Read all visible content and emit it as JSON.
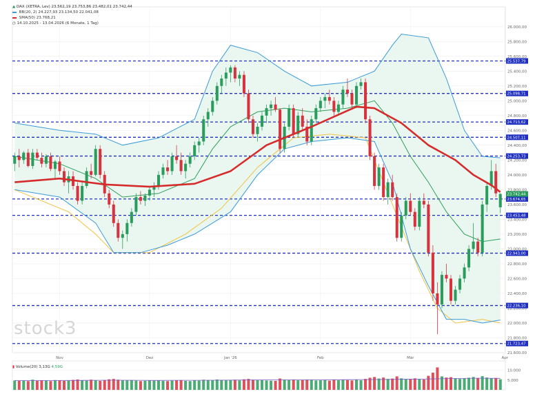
{
  "legend": {
    "instrument": "DAX (XETRA, Lev)",
    "ohlc": "23.562,19 23.753,86 23.482,01 23.742,44",
    "bb": "BB(20, 2)",
    "bb_values": "24.227,93 23.134,50 22.041,08",
    "sma": "SMA(50)",
    "sma_value": "23.768,21",
    "range": "14.10.2025 - 13.04.2026 (6 Monate, 1 Tag)"
  },
  "volume_legend": {
    "label": "Volume(20)",
    "value1": "3,13G",
    "value2": "4,59G"
  },
  "watermark": "stock3",
  "colors": {
    "up": "#2a9d5c",
    "down": "#d6333f",
    "bb_upper_lower": "#3a9ad9",
    "bb_mid": "#2e9e5a",
    "bb_fill": "#e8f6ee",
    "sma": "#d62b2b",
    "envelope": "#f0c240",
    "levels": "#1f2fbf"
  },
  "chart_data": {
    "type": "candlestick",
    "title": "DAX (XETRA, Lev)",
    "ylim": [
      21600,
      26100
    ],
    "y_ticks": [
      {
        "v": 26000,
        "label": "26.000,00"
      },
      {
        "v": 25800,
        "label": "25.800,00"
      },
      {
        "v": 25600,
        "label": "25.600,00"
      },
      {
        "v": 25400,
        "label": "25.400,00"
      },
      {
        "v": 25200,
        "label": "25.200,00"
      },
      {
        "v": 25000,
        "label": "25.000,00"
      },
      {
        "v": 24800,
        "label": "24.800,00"
      },
      {
        "v": 24600,
        "label": "24.600,00"
      },
      {
        "v": 24400,
        "label": "24.400,00"
      },
      {
        "v": 24200,
        "label": "24.200,00"
      },
      {
        "v": 24000,
        "label": "24.000,00"
      },
      {
        "v": 23800,
        "label": "23.800,00"
      },
      {
        "v": 23600,
        "label": "23.600,00"
      },
      {
        "v": 23400,
        "label": "23.400,00"
      },
      {
        "v": 23200,
        "label": "23.200,00"
      },
      {
        "v": 23000,
        "label": "23.000,00"
      },
      {
        "v": 22800,
        "label": "22.800,00"
      },
      {
        "v": 22600,
        "label": "22.600,00"
      },
      {
        "v": 22400,
        "label": "22.400,00"
      },
      {
        "v": 22200,
        "label": "22.200,00"
      },
      {
        "v": 22000,
        "label": "22.000,00"
      },
      {
        "v": 21800,
        "label": "21.800,00"
      },
      {
        "v": 21600,
        "label": "21.600,00"
      }
    ],
    "x_ticks": [
      {
        "i": 10,
        "label": "Nov"
      },
      {
        "i": 30,
        "label": "Dez"
      },
      {
        "i": 48,
        "label": "Jan '26"
      },
      {
        "i": 68,
        "label": "Feb"
      },
      {
        "i": 88,
        "label": "Mär"
      },
      {
        "i": 109,
        "label": "Apr"
      }
    ],
    "levels": [
      {
        "v": 25537.79,
        "label": "25.537,79"
      },
      {
        "v": 25098.71,
        "label": "25.098,71"
      },
      {
        "v": 24713.62,
        "label": "24.713,62"
      },
      {
        "v": 24507.11,
        "label": "24.507,11"
      },
      {
        "v": 24253.73,
        "label": "24.253,73"
      },
      {
        "v": 23674.65,
        "label": "23.674,65"
      },
      {
        "v": 23453.48,
        "label": "23.453,48"
      },
      {
        "v": 22943.0,
        "label": "22.943,00"
      },
      {
        "v": 22236.1,
        "label": "22.236,10"
      },
      {
        "v": 21723.47,
        "label": "21.723,47"
      }
    ],
    "last_price": {
      "v": 23742.44,
      "label": "23.742,44"
    },
    "candles": [
      [
        24150,
        24300,
        24050,
        24250
      ],
      [
        24250,
        24350,
        24100,
        24200
      ],
      [
        24200,
        24320,
        24150,
        24300
      ],
      [
        24300,
        24350,
        24100,
        24120
      ],
      [
        24120,
        24350,
        24080,
        24300
      ],
      [
        24300,
        24350,
        24200,
        24230
      ],
      [
        24230,
        24300,
        24100,
        24150
      ],
      [
        24150,
        24280,
        24100,
        24250
      ],
      [
        24250,
        24300,
        24050,
        24080
      ],
      [
        24080,
        24200,
        23950,
        24180
      ],
      [
        24180,
        24250,
        24000,
        24050
      ],
      [
        24050,
        24100,
        23850,
        23900
      ],
      [
        23900,
        24050,
        23750,
        23980
      ],
      [
        23980,
        24050,
        23800,
        23850
      ],
      [
        23850,
        23900,
        23600,
        23650
      ],
      [
        23650,
        23900,
        23600,
        23850
      ],
      [
        23850,
        24100,
        23820,
        24050
      ],
      [
        24050,
        24150,
        23950,
        24000
      ],
      [
        24000,
        24400,
        23980,
        24350
      ],
      [
        24350,
        24400,
        23950,
        24000
      ],
      [
        24000,
        24050,
        23700,
        23750
      ],
      [
        23750,
        23800,
        23550,
        23600
      ],
      [
        23600,
        23650,
        23300,
        23350
      ],
      [
        23350,
        23400,
        23100,
        23150
      ],
      [
        23150,
        23250,
        23000,
        23200
      ],
      [
        23200,
        23400,
        23100,
        23350
      ],
      [
        23350,
        23550,
        23300,
        23500
      ],
      [
        23500,
        23750,
        23450,
        23700
      ],
      [
        23700,
        23780,
        23600,
        23650
      ],
      [
        23650,
        23750,
        23580,
        23720
      ],
      [
        23720,
        23850,
        23650,
        23800
      ],
      [
        23800,
        23900,
        23700,
        23850
      ],
      [
        23850,
        24050,
        23800,
        24000
      ],
      [
        24000,
        24150,
        23950,
        24100
      ],
      [
        24100,
        24200,
        24000,
        24050
      ],
      [
        24050,
        24300,
        24000,
        24250
      ],
      [
        24250,
        24400,
        24150,
        24200
      ],
      [
        24200,
        24300,
        24000,
        24050
      ],
      [
        24050,
        24200,
        23950,
        24150
      ],
      [
        24150,
        24300,
        24100,
        24250
      ],
      [
        24250,
        24450,
        24200,
        24400
      ],
      [
        24400,
        24500,
        24300,
        24450
      ],
      [
        24450,
        24800,
        24400,
        24750
      ],
      [
        24750,
        24900,
        24650,
        24850
      ],
      [
        24850,
        25050,
        24800,
        25000
      ],
      [
        25000,
        25250,
        24950,
        25200
      ],
      [
        25200,
        25350,
        25100,
        25300
      ],
      [
        25300,
        25450,
        25200,
        25380
      ],
      [
        25380,
        25480,
        25250,
        25450
      ],
      [
        25450,
        25480,
        25250,
        25300
      ],
      [
        25300,
        25400,
        25200,
        25350
      ],
      [
        25350,
        25400,
        25050,
        25100
      ],
      [
        25100,
        25150,
        24700,
        24750
      ],
      [
        24750,
        24800,
        24500,
        24550
      ],
      [
        24550,
        24700,
        24450,
        24650
      ],
      [
        24650,
        24850,
        24600,
        24800
      ],
      [
        24800,
        24950,
        24700,
        24900
      ],
      [
        24900,
        25000,
        24800,
        24950
      ],
      [
        24950,
        25050,
        24850,
        24880
      ],
      [
        24880,
        24900,
        24300,
        24350
      ],
      [
        24350,
        24700,
        24300,
        24650
      ],
      [
        24650,
        24950,
        24600,
        24900
      ],
      [
        24900,
        24950,
        24500,
        24550
      ],
      [
        24550,
        24850,
        24500,
        24800
      ],
      [
        24800,
        24900,
        24600,
        24650
      ],
      [
        24650,
        24750,
        24400,
        24450
      ],
      [
        24450,
        24800,
        24400,
        24750
      ],
      [
        24750,
        24950,
        24700,
        24900
      ],
      [
        24900,
        25050,
        24850,
        25000
      ],
      [
        25000,
        25100,
        24900,
        25050
      ],
      [
        25050,
        25150,
        24950,
        25000
      ],
      [
        25000,
        25050,
        24800,
        24850
      ],
      [
        24850,
        25000,
        24800,
        24950
      ],
      [
        24950,
        25200,
        24900,
        25150
      ],
      [
        25150,
        25300,
        25050,
        25100
      ],
      [
        25100,
        25150,
        24900,
        24950
      ],
      [
        24950,
        25250,
        24900,
        25200
      ],
      [
        25200,
        25300,
        25150,
        25250
      ],
      [
        25250,
        25300,
        24700,
        24750
      ],
      [
        24750,
        24800,
        24200,
        24250
      ],
      [
        24250,
        24300,
        23800,
        23850
      ],
      [
        23850,
        24150,
        23800,
        24100
      ],
      [
        24100,
        24150,
        23650,
        23700
      ],
      [
        23700,
        23950,
        23600,
        23900
      ],
      [
        23900,
        24000,
        23650,
        23700
      ],
      [
        23700,
        23750,
        23100,
        23150
      ],
      [
        23150,
        23500,
        23100,
        23450
      ],
      [
        23450,
        23700,
        23400,
        23650
      ],
      [
        23650,
        23750,
        23450,
        23500
      ],
      [
        23500,
        23550,
        23250,
        23300
      ],
      [
        23300,
        23700,
        23250,
        23650
      ],
      [
        23650,
        23750,
        23550,
        23600
      ],
      [
        23600,
        23650,
        22900,
        22950
      ],
      [
        22950,
        23050,
        22300,
        22400
      ],
      [
        22400,
        22550,
        21850,
        22250
      ],
      [
        22250,
        22700,
        22200,
        22650
      ],
      [
        22650,
        22800,
        22550,
        22600
      ],
      [
        22600,
        22650,
        22250,
        22300
      ],
      [
        22300,
        22500,
        22250,
        22450
      ],
      [
        22450,
        22650,
        22400,
        22600
      ],
      [
        22600,
        22800,
        22550,
        22750
      ],
      [
        22750,
        23050,
        22700,
        23000
      ],
      [
        23000,
        23350,
        22950,
        23100
      ],
      [
        23100,
        23150,
        22900,
        22950
      ],
      [
        22950,
        23650,
        22900,
        23600
      ],
      [
        23600,
        23900,
        23500,
        23850
      ],
      [
        23850,
        24200,
        23800,
        24050
      ],
      [
        24050,
        24150,
        23700,
        23750
      ],
      [
        23562.19,
        23753.86,
        23482.01,
        23742.44
      ]
    ],
    "sma50": [
      [
        0,
        23900
      ],
      [
        10,
        23950
      ],
      [
        20,
        23870
      ],
      [
        30,
        23840
      ],
      [
        40,
        23880
      ],
      [
        48,
        24050
      ],
      [
        56,
        24400
      ],
      [
        66,
        24650
      ],
      [
        76,
        24920
      ],
      [
        80,
        24900
      ],
      [
        86,
        24700
      ],
      [
        92,
        24400
      ],
      [
        98,
        24200
      ],
      [
        102,
        24000
      ],
      [
        106,
        23860
      ],
      [
        108,
        23768.21
      ]
    ],
    "bb_upper": [
      [
        0,
        24700
      ],
      [
        10,
        24600
      ],
      [
        18,
        24550
      ],
      [
        24,
        24400
      ],
      [
        32,
        24500
      ],
      [
        40,
        24750
      ],
      [
        44,
        25400
      ],
      [
        48,
        25750
      ],
      [
        54,
        25650
      ],
      [
        60,
        25400
      ],
      [
        66,
        25200
      ],
      [
        74,
        25250
      ],
      [
        80,
        25400
      ],
      [
        84,
        25750
      ],
      [
        86,
        25900
      ],
      [
        92,
        25850
      ],
      [
        96,
        25300
      ],
      [
        100,
        24600
      ],
      [
        104,
        24250
      ],
      [
        108,
        24230
      ]
    ],
    "bb_mid": [
      [
        0,
        24250
      ],
      [
        10,
        24150
      ],
      [
        18,
        23950
      ],
      [
        24,
        23700
      ],
      [
        32,
        23750
      ],
      [
        40,
        23950
      ],
      [
        44,
        24350
      ],
      [
        48,
        24650
      ],
      [
        54,
        24850
      ],
      [
        60,
        24900
      ],
      [
        66,
        24850
      ],
      [
        74,
        24900
      ],
      [
        80,
        25000
      ],
      [
        84,
        24700
      ],
      [
        88,
        24250
      ],
      [
        92,
        23900
      ],
      [
        96,
        23500
      ],
      [
        100,
        23200
      ],
      [
        104,
        23100
      ],
      [
        108,
        23134.5
      ]
    ],
    "bb_lower": [
      [
        0,
        23800
      ],
      [
        10,
        23700
      ],
      [
        18,
        23350
      ],
      [
        22,
        22950
      ],
      [
        28,
        22950
      ],
      [
        34,
        23050
      ],
      [
        40,
        23200
      ],
      [
        44,
        23350
      ],
      [
        48,
        23500
      ],
      [
        54,
        24000
      ],
      [
        60,
        24350
      ],
      [
        66,
        24450
      ],
      [
        74,
        24500
      ],
      [
        80,
        24450
      ],
      [
        84,
        23900
      ],
      [
        88,
        23000
      ],
      [
        92,
        22500
      ],
      [
        96,
        22050
      ],
      [
        100,
        22050
      ],
      [
        104,
        22000
      ],
      [
        108,
        22041.08
      ]
    ],
    "envelope": [
      [
        0,
        23800
      ],
      [
        12,
        23500
      ],
      [
        18,
        23200
      ],
      [
        22,
        22950
      ],
      [
        30,
        22950
      ],
      [
        38,
        23200
      ],
      [
        46,
        23550
      ],
      [
        54,
        24100
      ],
      [
        62,
        24500
      ],
      [
        70,
        24550
      ],
      [
        78,
        24500
      ],
      [
        84,
        23600
      ],
      [
        90,
        22700
      ],
      [
        94,
        22200
      ],
      [
        98,
        22000
      ],
      [
        104,
        22050
      ],
      [
        108,
        22000
      ]
    ],
    "volume": {
      "ylim": [
        0,
        12000
      ],
      "y_ticks": [
        {
          "v": 10000,
          "label": "10.000"
        },
        {
          "v": 5000,
          "label": "5.000"
        }
      ],
      "bars": [
        4800,
        4600,
        4700,
        4500,
        5200,
        4600,
        4900,
        4700,
        4500,
        5000,
        4800,
        4600,
        4700,
        5100,
        5300,
        4900,
        4700,
        5200,
        4800,
        4600,
        5000,
        5400,
        5600,
        5200,
        4900,
        4800,
        5000,
        4700,
        4500,
        4600,
        4800,
        4700,
        4900,
        4600,
        4500,
        4700,
        4800,
        5000,
        4600,
        4500,
        4800,
        4700,
        5200,
        5000,
        4900,
        5300,
        5100,
        4900,
        5000,
        5200,
        4800,
        5400,
        5600,
        5200,
        4900,
        5000,
        4800,
        4700,
        4600,
        5800,
        5200,
        5000,
        5300,
        4900,
        5000,
        5200,
        5100,
        4800,
        4900,
        5000,
        4700,
        5100,
        4900,
        5200,
        5000,
        4800,
        5100,
        4900,
        5600,
        6200,
        6600,
        5800,
        6300,
        5600,
        5800,
        6900,
        5900,
        5500,
        5600,
        5900,
        5400,
        5300,
        7200,
        8800,
        11500,
        6900,
        6300,
        6500,
        5900,
        5600,
        5800,
        6200,
        6600,
        6100,
        7000,
        6300,
        5900,
        6100,
        5400
      ],
      "avg": [
        4750,
        4750,
        4800,
        4850,
        4900,
        4950,
        4900,
        4850,
        4900,
        4900,
        4950,
        5000,
        5050,
        5100,
        5100,
        5150,
        5200,
        5250,
        5300,
        5400,
        5500,
        5700,
        5850,
        5950,
        5900
      ]
    }
  }
}
